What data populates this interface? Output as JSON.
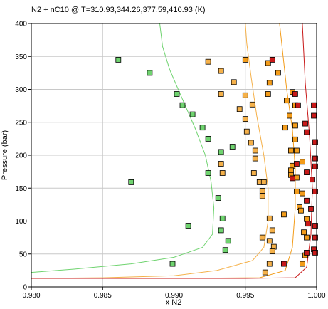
{
  "chart_data": {
    "type": "scatter",
    "title": "N2 + nC10 @ T=310.93,344.26,377.59,410.93 (K)",
    "xlabel": "x N2",
    "ylabel": "Pressure (bar)",
    "xlim": [
      0.98,
      1.0
    ],
    "ylim": [
      0,
      400
    ],
    "x_ticks": [
      "0.980",
      "0.985",
      "0.990",
      "0.995",
      "1.000"
    ],
    "y_ticks": [
      "0",
      "50",
      "100",
      "150",
      "200",
      "250",
      "300",
      "350",
      "400"
    ],
    "grid": true,
    "series": [
      {
        "color": "#6fd36f",
        "curve": [
          [
            0.98,
            22
          ],
          [
            0.983,
            27
          ],
          [
            0.987,
            35
          ],
          [
            0.99,
            45
          ],
          [
            0.992,
            60
          ],
          [
            0.9927,
            80
          ],
          [
            0.9928,
            120
          ],
          [
            0.9926,
            160
          ],
          [
            0.9922,
            200
          ],
          [
            0.9915,
            240
          ],
          [
            0.9905,
            290
          ],
          [
            0.9897,
            330
          ],
          [
            0.9892,
            365
          ],
          [
            0.989,
            400
          ]
        ],
        "points": [
          [
            0.9861,
            345
          ],
          [
            0.9883,
            325
          ],
          [
            0.9902,
            293
          ],
          [
            0.9906,
            276
          ],
          [
            0.9913,
            262
          ],
          [
            0.992,
            242
          ],
          [
            0.9924,
            225
          ],
          [
            0.9924,
            173
          ],
          [
            0.9931,
            135
          ],
          [
            0.9933,
            205
          ],
          [
            0.9941,
            213
          ],
          [
            0.9934,
            104
          ],
          [
            0.9938,
            70
          ],
          [
            0.9936,
            56
          ],
          [
            0.9933,
            86
          ],
          [
            0.991,
            93
          ],
          [
            0.9899,
            35
          ],
          [
            0.987,
            159
          ]
        ]
      },
      {
        "color": "#f5b14a",
        "curve": [
          [
            0.98,
            13
          ],
          [
            0.985,
            14
          ],
          [
            0.99,
            17
          ],
          [
            0.993,
            25
          ],
          [
            0.9955,
            40
          ],
          [
            0.9963,
            60
          ],
          [
            0.9966,
            100
          ],
          [
            0.9966,
            150
          ],
          [
            0.9963,
            200
          ],
          [
            0.9958,
            260
          ],
          [
            0.9954,
            320
          ],
          [
            0.9951,
            370
          ],
          [
            0.995,
            400
          ]
        ],
        "points": [
          [
            0.9924,
            342
          ],
          [
            0.9933,
            328
          ],
          [
            0.9942,
            311
          ],
          [
            0.9933,
            293
          ],
          [
            0.995,
            291
          ],
          [
            0.9955,
            277
          ],
          [
            0.9946,
            270
          ],
          [
            0.995,
            255
          ],
          [
            0.9951,
            236
          ],
          [
            0.9954,
            219
          ],
          [
            0.9957,
            207
          ],
          [
            0.9957,
            195
          ],
          [
            0.9956,
            173
          ],
          [
            0.996,
            159
          ],
          [
            0.9963,
            159
          ],
          [
            0.9962,
            146
          ],
          [
            0.9962,
            138
          ],
          [
            0.9967,
            104
          ],
          [
            0.9969,
            86
          ],
          [
            0.9962,
            75
          ],
          [
            0.9967,
            70
          ],
          [
            0.997,
            61
          ],
          [
            0.9969,
            54
          ],
          [
            0.9967,
            35
          ],
          [
            0.9964,
            22
          ],
          [
            0.9934,
            173
          ],
          [
            0.9933,
            187
          ]
        ]
      },
      {
        "color": "#f39c1a",
        "curve": [
          [
            0.98,
            13
          ],
          [
            0.99,
            13
          ],
          [
            0.996,
            14
          ],
          [
            0.9978,
            25
          ],
          [
            0.9983,
            60
          ],
          [
            0.9985,
            120
          ],
          [
            0.9985,
            180
          ],
          [
            0.9983,
            240
          ],
          [
            0.9979,
            300
          ],
          [
            0.9976,
            360
          ],
          [
            0.9974,
            400
          ]
        ],
        "points": [
          [
            0.995,
            345
          ],
          [
            0.9966,
            340
          ],
          [
            0.9967,
            310
          ],
          [
            0.9973,
            325
          ],
          [
            0.9966,
            293
          ],
          [
            0.9979,
            283
          ],
          [
            0.9981,
            260
          ],
          [
            0.9983,
            296
          ],
          [
            0.9985,
            276
          ],
          [
            0.9978,
            242
          ],
          [
            0.9985,
            224
          ],
          [
            0.9982,
            207
          ],
          [
            0.9986,
            207
          ],
          [
            0.9983,
            184
          ],
          [
            0.9982,
            177
          ],
          [
            0.9982,
            170
          ],
          [
            0.9986,
            166
          ],
          [
            0.9986,
            145
          ],
          [
            0.999,
            142
          ],
          [
            0.9988,
            121
          ],
          [
            0.9989,
            116
          ],
          [
            0.9993,
            103
          ],
          [
            0.9991,
            83
          ],
          [
            0.9993,
            75
          ],
          [
            0.9992,
            48
          ],
          [
            0.999,
            35
          ],
          [
            0.9977,
            110
          ],
          [
            0.999,
            190
          ],
          [
            0.9985,
            245
          ]
        ]
      },
      {
        "color": "#c81919",
        "curve": [
          [
            0.98,
            13
          ],
          [
            0.995,
            13
          ],
          [
            0.9985,
            14
          ],
          [
            0.9993,
            30
          ],
          [
            0.9996,
            80
          ],
          [
            0.9997,
            150
          ],
          [
            0.9995,
            230
          ],
          [
            0.9992,
            310
          ],
          [
            0.999,
            400
          ]
        ],
        "points": [
          [
            0.9969,
            345
          ],
          [
            0.9985,
            293
          ],
          [
            0.9987,
            276
          ],
          [
            0.9992,
            248
          ],
          [
            0.9993,
            235
          ],
          [
            0.9998,
            276
          ],
          [
            0.9998,
            260
          ],
          [
            0.9999,
            220
          ],
          [
            0.9999,
            195
          ],
          [
            0.9999,
            183
          ],
          [
            0.9993,
            174
          ],
          [
            0.9997,
            163
          ],
          [
            0.9999,
            145
          ],
          [
            0.9993,
            131
          ],
          [
            0.9996,
            118
          ],
          [
            0.9994,
            96
          ],
          [
            0.9999,
            93
          ],
          [
            0.9999,
            75
          ],
          [
            0.9998,
            57
          ],
          [
            0.9999,
            52
          ],
          [
            0.9993,
            52
          ],
          [
            0.9977,
            35
          ],
          [
            0.9986,
            187
          ],
          [
            0.9983,
            165
          ]
        ]
      }
    ]
  }
}
